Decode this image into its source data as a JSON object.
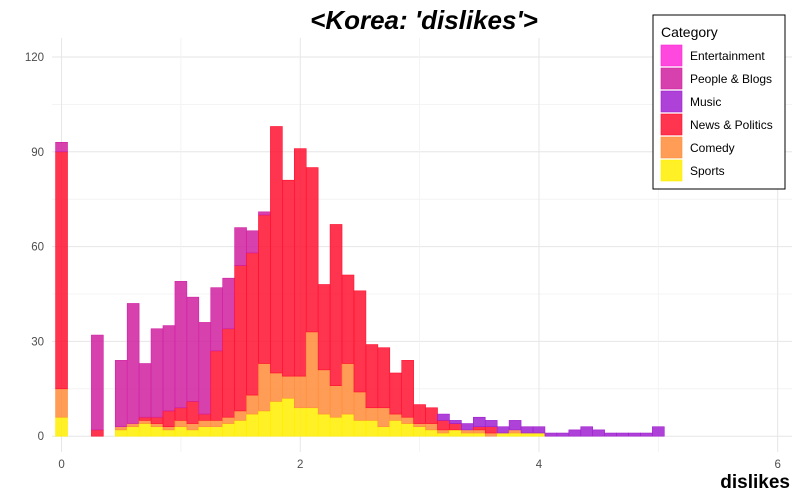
{
  "chart_data": {
    "type": "bar",
    "stacked": true,
    "title": "<Korea: 'dislikes'>",
    "xlabel": "dislikes",
    "ylabel": "",
    "xlim": [
      -0.08,
      6.12
    ],
    "ylim": [
      -5,
      126
    ],
    "x_ticks": [
      0,
      2,
      4,
      6
    ],
    "y_ticks": [
      0,
      30,
      60,
      90,
      120
    ],
    "bin_width": 0.1,
    "grid": true,
    "legend": {
      "title": "Category",
      "position": "top-right"
    },
    "bins": [
      0.0,
      0.1,
      0.2,
      0.3,
      0.4,
      0.5,
      0.6,
      0.7,
      0.8,
      0.9,
      1.0,
      1.1,
      1.2,
      1.3,
      1.4,
      1.5,
      1.6,
      1.7,
      1.8,
      1.9,
      2.0,
      2.1,
      2.2,
      2.3,
      2.4,
      2.5,
      2.6,
      2.7,
      2.8,
      2.9,
      3.0,
      3.1,
      3.2,
      3.3,
      3.4,
      3.5,
      3.6,
      3.7,
      3.8,
      3.9,
      4.0,
      4.1,
      4.2,
      4.3,
      4.4,
      4.5,
      4.6,
      4.7,
      4.8,
      4.9,
      5.0
    ],
    "series": [
      {
        "name": "Sports",
        "color": "#ffee00",
        "values": [
          6,
          0,
          0,
          0,
          0,
          2,
          3,
          4,
          3,
          2,
          3,
          2,
          3,
          3,
          4,
          5,
          7,
          8,
          11,
          12,
          9,
          9,
          7,
          6,
          7,
          5,
          5,
          3,
          5,
          4,
          3,
          2,
          1,
          2,
          1,
          1,
          0,
          1,
          1,
          1,
          1,
          0,
          0,
          0,
          0,
          0,
          0,
          0,
          0,
          0,
          0
        ]
      },
      {
        "name": "Comedy",
        "color": "#ff8c3a",
        "values": [
          9,
          0,
          0,
          0,
          0,
          1,
          1,
          1,
          1,
          1,
          2,
          2,
          2,
          2,
          2,
          3,
          6,
          15,
          9,
          7,
          10,
          24,
          14,
          10,
          16,
          9,
          4,
          6,
          2,
          2,
          1,
          2,
          1,
          0,
          1,
          1,
          1,
          0,
          1,
          0,
          0,
          0,
          0,
          0,
          0,
          0,
          0,
          0,
          0,
          0,
          0
        ]
      },
      {
        "name": "News & Politics",
        "color": "#ff1030",
        "values": [
          75,
          0,
          0,
          2,
          0,
          0,
          0,
          1,
          2,
          5,
          4,
          7,
          2,
          22,
          28,
          46,
          45,
          47,
          78,
          62,
          72,
          52,
          27,
          51,
          28,
          32,
          20,
          19,
          13,
          18,
          6,
          5,
          3,
          2,
          0,
          1,
          2,
          0,
          0,
          0,
          0,
          0,
          0,
          0,
          0,
          0,
          0,
          0,
          0,
          0,
          0
        ]
      },
      {
        "name": "Music",
        "color": "#a020d0",
        "values": [
          0,
          0,
          0,
          0,
          0,
          0,
          0,
          0,
          0,
          0,
          0,
          0,
          0,
          0,
          0,
          0,
          0,
          0,
          0,
          0,
          0,
          0,
          0,
          0,
          0,
          0,
          0,
          0,
          0,
          0,
          0,
          0,
          2,
          1,
          2,
          3,
          2,
          2,
          3,
          2,
          2,
          1,
          1,
          2,
          3,
          2,
          1,
          1,
          1,
          1,
          3
        ]
      },
      {
        "name": "People & Blogs",
        "color": "#d020a0",
        "values": [
          3,
          0,
          0,
          30,
          0,
          21,
          38,
          17,
          28,
          27,
          40,
          33,
          29,
          20,
          16,
          12,
          7,
          1,
          0,
          0,
          0,
          0,
          0,
          0,
          0,
          0,
          0,
          0,
          0,
          0,
          0,
          0,
          0,
          0,
          0,
          0,
          0,
          0,
          0,
          0,
          0,
          0,
          0,
          0,
          0,
          0,
          0,
          0,
          0,
          0,
          0
        ]
      },
      {
        "name": "Entertainment",
        "color": "#ff28d8",
        "values": [
          0,
          0,
          0,
          0,
          0,
          0,
          0,
          0,
          0,
          0,
          0,
          0,
          0,
          0,
          0,
          0,
          0,
          0,
          0,
          0,
          0,
          0,
          0,
          0,
          0,
          0,
          0,
          0,
          0,
          0,
          0,
          0,
          0,
          0,
          0,
          0,
          0,
          0,
          0,
          0,
          0,
          0,
          0,
          0,
          0,
          0,
          0,
          0,
          0,
          0,
          0
        ]
      }
    ],
    "legend_order": [
      "Entertainment",
      "People & Blogs",
      "Music",
      "News & Politics",
      "Comedy",
      "Sports"
    ]
  }
}
